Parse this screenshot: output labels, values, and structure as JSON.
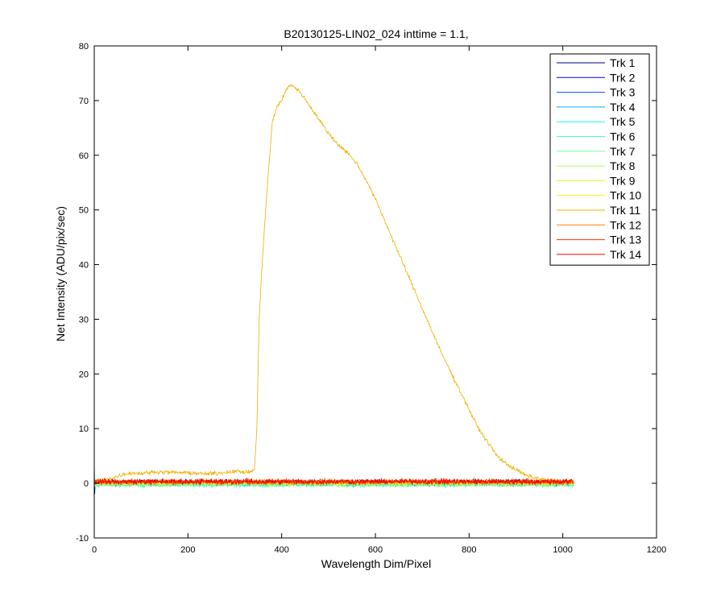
{
  "chart_data": {
    "type": "line",
    "title": "B20130125-LIN02_024 inttime = 1.1,",
    "xlabel": "Wavelength Dim/Pixel",
    "ylabel": "Net Intensity (ADU/pix/sec)",
    "xlim": [
      0,
      1200
    ],
    "ylim": [
      -10,
      80
    ],
    "xticks": [
      0,
      200,
      400,
      600,
      800,
      1000,
      1200
    ],
    "yticks": [
      -10,
      0,
      10,
      20,
      30,
      40,
      50,
      60,
      70,
      80
    ],
    "grid": false,
    "legend_position": "top-right",
    "x_range_of_data": [
      0,
      1023
    ],
    "series": [
      {
        "name": "Trk 1",
        "color": "#00008F",
        "profile": "flat",
        "offset": 0.2,
        "noise": 0.5
      },
      {
        "name": "Trk 2",
        "color": "#0000EF",
        "profile": "flat",
        "offset": 0.1,
        "noise": 0.5
      },
      {
        "name": "Trk 3",
        "color": "#0050FF",
        "profile": "flat",
        "offset": 0.0,
        "noise": 0.5
      },
      {
        "name": "Trk 4",
        "color": "#00AFFF",
        "profile": "flat",
        "offset": 0.0,
        "noise": 0.5
      },
      {
        "name": "Trk 5",
        "color": "#10FFEF",
        "profile": "flat",
        "offset": -0.1,
        "noise": 0.5
      },
      {
        "name": "Trk 6",
        "color": "#40FFBF",
        "profile": "flat",
        "offset": -0.2,
        "noise": 0.5
      },
      {
        "name": "Trk 7",
        "color": "#70FF8F",
        "profile": "flat",
        "offset": -0.1,
        "noise": 0.5
      },
      {
        "name": "Trk 8",
        "color": "#AFFF50",
        "profile": "flat",
        "offset": 0.0,
        "noise": 0.5
      },
      {
        "name": "Trk 9",
        "color": "#DFFF20",
        "profile": "flat",
        "offset": 0.1,
        "noise": 0.5
      },
      {
        "name": "Trk 10",
        "color": "#FFEF00",
        "profile": "flat",
        "offset": 0.2,
        "noise": 0.5
      },
      {
        "name": "Trk 11",
        "color": "#EFB000",
        "profile": "peak",
        "points": [
          [
            0,
            0.5
          ],
          [
            20,
            0.6
          ],
          [
            40,
            1.0
          ],
          [
            60,
            1.6
          ],
          [
            80,
            1.9
          ],
          [
            100,
            1.8
          ],
          [
            130,
            2.1
          ],
          [
            160,
            2.0
          ],
          [
            200,
            1.9
          ],
          [
            240,
            1.7
          ],
          [
            270,
            1.9
          ],
          [
            300,
            2.2
          ],
          [
            330,
            2.0
          ],
          [
            342,
            2.5
          ],
          [
            347,
            10
          ],
          [
            352,
            30
          ],
          [
            356,
            37
          ],
          [
            362,
            45
          ],
          [
            370,
            55
          ],
          [
            380,
            66
          ],
          [
            390,
            69
          ],
          [
            400,
            70
          ],
          [
            410,
            72
          ],
          [
            420,
            73
          ],
          [
            440,
            71.5
          ],
          [
            460,
            69
          ],
          [
            480,
            66.5
          ],
          [
            500,
            64
          ],
          [
            520,
            62
          ],
          [
            540,
            60.5
          ],
          [
            560,
            58.5
          ],
          [
            580,
            55.5
          ],
          [
            600,
            52
          ],
          [
            620,
            48
          ],
          [
            640,
            44
          ],
          [
            660,
            40
          ],
          [
            680,
            36
          ],
          [
            700,
            32
          ],
          [
            720,
            28
          ],
          [
            740,
            24
          ],
          [
            760,
            20.5
          ],
          [
            780,
            17
          ],
          [
            800,
            13.5
          ],
          [
            820,
            10
          ],
          [
            840,
            7.5
          ],
          [
            860,
            5
          ],
          [
            880,
            3.5
          ],
          [
            900,
            2.5
          ],
          [
            920,
            1.5
          ],
          [
            940,
            1.0
          ],
          [
            960,
            0.7
          ],
          [
            980,
            0.5
          ],
          [
            1000,
            0.4
          ],
          [
            1023,
            0.3
          ]
        ],
        "noise": 0.35
      },
      {
        "name": "Trk 12",
        "color": "#FF7F00",
        "profile": "flat",
        "offset": 0.2,
        "noise": 0.5
      },
      {
        "name": "Trk 13",
        "color": "#FF3000",
        "profile": "flat",
        "offset": 0.3,
        "noise": 0.5
      },
      {
        "name": "Trk 14",
        "color": "#EF0000",
        "profile": "flat",
        "offset": 0.3,
        "noise": 0.5
      }
    ]
  }
}
